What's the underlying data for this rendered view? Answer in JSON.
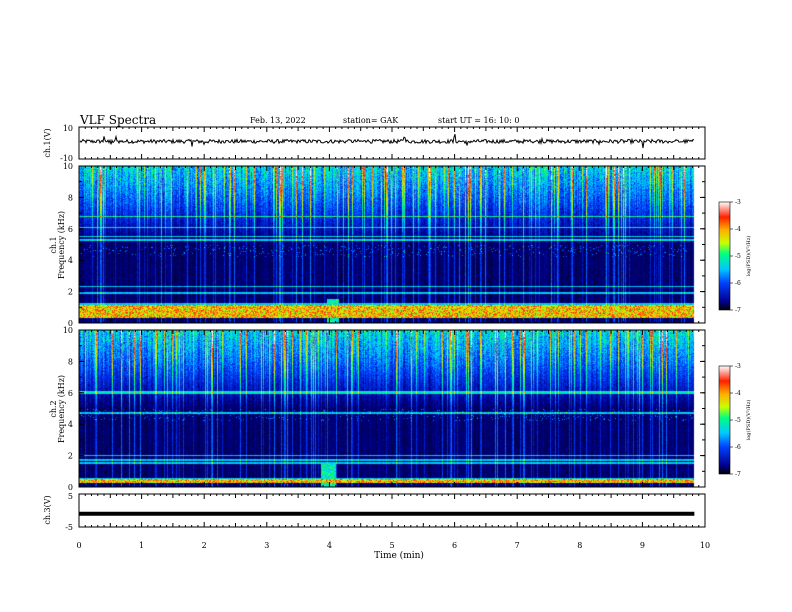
{
  "header": {
    "title": "VLF Spectra",
    "date": "Feb. 13, 2022",
    "station": "station= GAK",
    "start": "start  UT =   16: 10: 0"
  },
  "colors": {
    "spectrogram_background": "#000040",
    "trace": "#000000",
    "colormap": [
      "#000000",
      "#000090",
      "#0040ff",
      "#00c8ff",
      "#00ff80",
      "#c8ff00",
      "#ffb000",
      "#ff2000",
      "#ffffff"
    ]
  },
  "colorbar": {
    "label": "log(PSD)(V²/Hz)",
    "ticks": [
      "-3",
      "-4",
      "-5",
      "-6",
      "-7"
    ]
  },
  "chart_data": [
    {
      "type": "line",
      "panel": "ch1-voltage",
      "ylabel": "ch.1(V)",
      "ylim": [
        -10,
        10
      ],
      "ytick_labels": [
        "10",
        "-10"
      ],
      "baseline_level": 1,
      "noise_amplitude": 1.2,
      "spikes_min": [
        0.4,
        0.5,
        0.6,
        1.8,
        2.0,
        2.3,
        3.5,
        4.3,
        4.6,
        5.2,
        6.0,
        6.2,
        7.2,
        7.4,
        8.3,
        9.0,
        9.5
      ]
    },
    {
      "type": "heatmap",
      "panel": "ch1-spectrogram",
      "ylabel": "ch.1\nFrequency (kHz)",
      "ylim": [
        0,
        10
      ],
      "yticks": [
        0,
        2,
        4,
        6,
        8,
        10
      ],
      "z_range": [
        -7,
        -3
      ],
      "z_label": "log(PSD)(V²/Hz)",
      "persistent_bands_khz": [
        0.4,
        0.5,
        0.9,
        1.2,
        1.9,
        2.3,
        5.3,
        5.5,
        6.1,
        6.8
      ],
      "strong_band_khz": [
        0.3,
        1.1
      ],
      "burst_min": [
        3.95,
        4.15
      ]
    },
    {
      "type": "heatmap",
      "panel": "ch2-spectrogram",
      "ylabel": "ch.2\nFrequency (kHz)",
      "ylim": [
        0,
        10
      ],
      "yticks": [
        0,
        2,
        4,
        6,
        8,
        10
      ],
      "z_range": [
        -7,
        -3
      ],
      "z_label": "log(PSD)(V²/Hz)",
      "persistent_bands_khz": [
        0.3,
        0.5,
        1.5,
        1.7,
        2.0,
        4.7,
        6.0,
        6.1
      ],
      "strong_band_khz": [
        0.2,
        0.5
      ],
      "burst_min": [
        3.85,
        4.1
      ]
    },
    {
      "type": "line",
      "panel": "ch3-voltage",
      "ylabel": "ch.3(V)",
      "ylim": [
        -5,
        5
      ],
      "ytick_labels": [
        "5",
        "-5"
      ],
      "constant_value": -1
    }
  ],
  "xaxis": {
    "label": "Time (min)",
    "range": [
      0,
      10
    ],
    "data_end": 9.83,
    "ticks": [
      "0",
      "1",
      "2",
      "3",
      "4",
      "5",
      "6",
      "7",
      "8",
      "9",
      "10"
    ]
  }
}
